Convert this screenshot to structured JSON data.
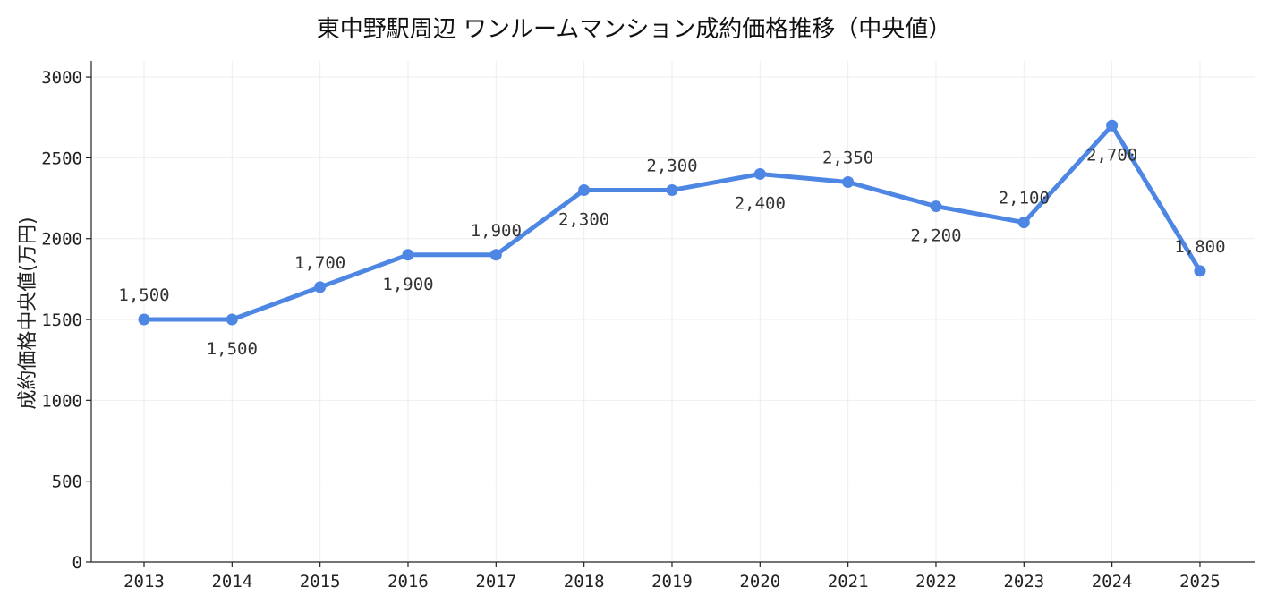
{
  "chart_data": {
    "type": "line",
    "title": "東中野駅周辺 ワンルームマンション成約価格推移（中央値）",
    "xlabel": "",
    "ylabel": "成約価格中央値(万円)",
    "x": [
      "2013",
      "2014",
      "2015",
      "2016",
      "2017",
      "2018",
      "2019",
      "2020",
      "2021",
      "2022",
      "2023",
      "2024",
      "2025"
    ],
    "series": [
      {
        "values": [
          1500,
          1500,
          1700,
          1900,
          1900,
          2300,
          2300,
          2400,
          2350,
          2200,
          2100,
          2700,
          1800
        ],
        "data_labels": [
          "1,500",
          "1,500",
          "1,700",
          "1,900",
          "1,900",
          "2,300",
          "2,300",
          "2,400",
          "2,350",
          "2,200",
          "2,100",
          "2,700",
          "1,800"
        ],
        "color": "#4e86e4"
      }
    ],
    "ylim": [
      0,
      3100
    ],
    "yticks": [
      0,
      500,
      1000,
      1500,
      2000,
      2500,
      3000
    ],
    "grid": true,
    "legend": "none"
  }
}
